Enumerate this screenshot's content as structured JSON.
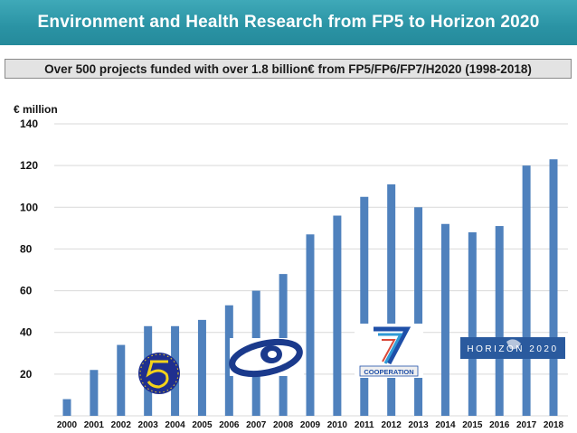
{
  "header": {
    "title": "Environment and Health Research from FP5 to Horizon 2020",
    "subtitle": "Over 500 projects funded with over 1.8 billion€ from FP5/FP6/FP7/H2020 (1998-2018)"
  },
  "colors": {
    "title_bar": "#2a93a4",
    "bar": "#4f81bd",
    "grid": "#d9d9d9"
  },
  "logos": [
    {
      "name": "fp5-logo",
      "icon": "fp5-emblem-icon"
    },
    {
      "name": "fp6-logo",
      "icon": "fp6-six-icon"
    },
    {
      "name": "fp7-logo",
      "icon": "fp7-seven-icon",
      "caption": "COOPERATION"
    },
    {
      "name": "horizon-2020-logo",
      "icon": "horizon-2020-icon",
      "text": "HORIZON 2020"
    }
  ],
  "chart_data": {
    "type": "bar",
    "title": "",
    "ylabel": "€ million",
    "xlabel": "",
    "ylim": [
      0,
      140
    ],
    "yticks": [
      20,
      40,
      60,
      80,
      100,
      120,
      140
    ],
    "grid": true,
    "categories": [
      "2000",
      "2001",
      "2002",
      "2003",
      "2004",
      "2005",
      "2006",
      "2007",
      "2008",
      "2009",
      "2010",
      "2011",
      "2012",
      "2013",
      "2014",
      "2015",
      "2016",
      "2017",
      "2018"
    ],
    "values": [
      8,
      22,
      34,
      43,
      43,
      46,
      53,
      60,
      68,
      87,
      96,
      105,
      111,
      100,
      92,
      88,
      91,
      120,
      123
    ]
  }
}
